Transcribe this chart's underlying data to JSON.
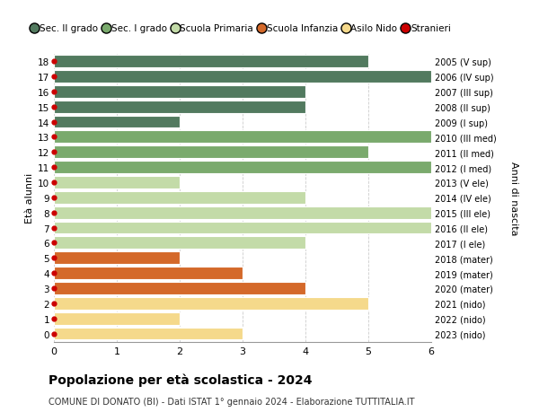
{
  "ages": [
    18,
    17,
    16,
    15,
    14,
    13,
    12,
    11,
    10,
    9,
    8,
    7,
    6,
    5,
    4,
    3,
    2,
    1,
    0
  ],
  "right_labels": [
    "2005 (V sup)",
    "2006 (IV sup)",
    "2007 (III sup)",
    "2008 (II sup)",
    "2009 (I sup)",
    "2010 (III med)",
    "2011 (II med)",
    "2012 (I med)",
    "2013 (V ele)",
    "2014 (IV ele)",
    "2015 (III ele)",
    "2016 (II ele)",
    "2017 (I ele)",
    "2018 (mater)",
    "2019 (mater)",
    "2020 (mater)",
    "2021 (nido)",
    "2022 (nido)",
    "2023 (nido)"
  ],
  "bar_values": [
    5,
    6,
    4,
    4,
    2,
    6,
    5,
    6,
    2,
    4,
    6,
    6,
    4,
    2,
    3,
    4,
    5,
    2,
    3
  ],
  "bar_colors": [
    "#527a5f",
    "#527a5f",
    "#527a5f",
    "#527a5f",
    "#527a5f",
    "#7aaa6d",
    "#7aaa6d",
    "#7aaa6d",
    "#c3dba8",
    "#c3dba8",
    "#c3dba8",
    "#c3dba8",
    "#c3dba8",
    "#d4692a",
    "#d4692a",
    "#d4692a",
    "#f5d98b",
    "#f5d98b",
    "#f5d98b"
  ],
  "stranieri_dots": [
    18,
    17,
    16,
    15,
    14,
    13,
    12,
    11,
    10,
    9,
    8,
    7,
    6,
    5,
    4,
    3,
    2,
    1,
    0
  ],
  "legend_labels": [
    "Sec. II grado",
    "Sec. I grado",
    "Scuola Primaria",
    "Scuola Infanzia",
    "Asilo Nido",
    "Stranieri"
  ],
  "legend_colors": [
    "#527a5f",
    "#7aaa6d",
    "#c3dba8",
    "#d4692a",
    "#f5d98b",
    "#cc0000"
  ],
  "ylabel_left": "Età alunni",
  "ylabel_right": "Anni di nascita",
  "title": "Popolazione per età scolastica - 2024",
  "subtitle": "COMUNE DI DONATO (BI) - Dati ISTAT 1° gennaio 2024 - Elaborazione TUTTITALIA.IT",
  "xlim": [
    0,
    6
  ],
  "xticks": [
    0,
    1,
    2,
    3,
    4,
    5,
    6
  ],
  "background_color": "#ffffff",
  "grid_color": "#cccccc",
  "bar_height": 0.82,
  "dot_color": "#cc0000"
}
